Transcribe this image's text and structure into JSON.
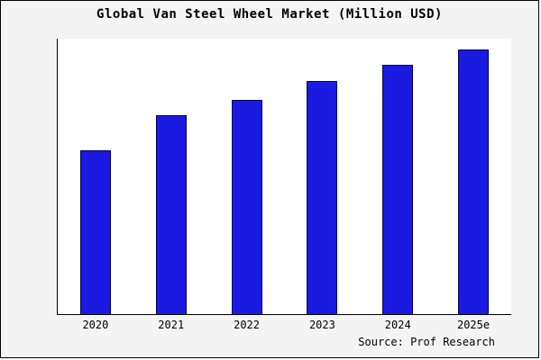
{
  "chart_data": {
    "type": "bar",
    "title": "Global Van Steel Wheel Market (Million USD)",
    "categories": [
      "2020",
      "2021",
      "2022",
      "2023",
      "2024",
      "2025e"
    ],
    "values": [
      62,
      75,
      81,
      88,
      94,
      100
    ],
    "xlabel": "",
    "ylabel": "",
    "ylim": [
      0,
      104
    ],
    "grid": false,
    "legend_position": "none",
    "bar_fill_color": "#1a1ae0",
    "bar_border_color": "#000060",
    "source": "Source: Prof Research"
  }
}
